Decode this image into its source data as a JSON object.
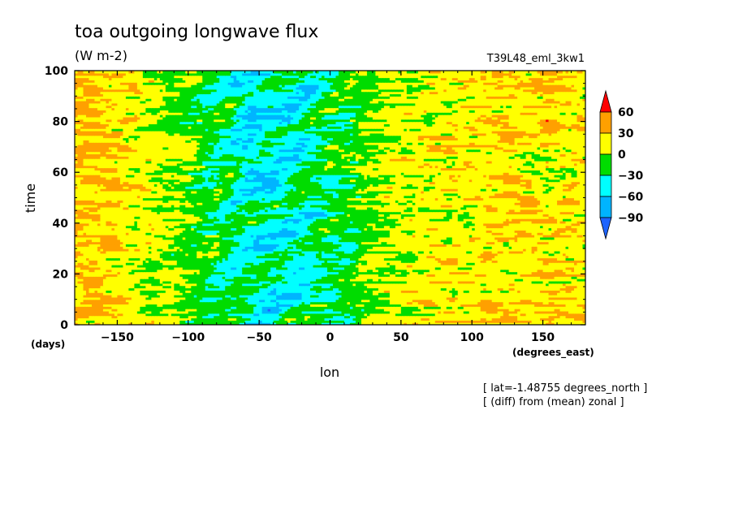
{
  "chart_data": {
    "type": "heatmap",
    "title": "toa outgoing longwave flux",
    "units": "(W m-2)",
    "run_label": "T39L48_eml_3kw1",
    "xlabel": "lon",
    "ylabel": "time",
    "x_unit_label": "(degrees_east)",
    "y_unit_label": "(days)",
    "xlim": [
      -180,
      180
    ],
    "ylim": [
      0,
      100
    ],
    "x_ticks": [
      -150,
      -100,
      -50,
      0,
      50,
      100,
      150
    ],
    "y_ticks": [
      0,
      20,
      40,
      60,
      80,
      100
    ],
    "colorbar": {
      "levels": [
        -90,
        -60,
        -30,
        0,
        30,
        60
      ],
      "labels": [
        "60",
        "30",
        "0",
        "-30",
        "-60",
        "-90"
      ],
      "colors": [
        "#1e64ff",
        "#00b4ff",
        "#00ffff",
        "#00dc00",
        "#ffff00",
        "#ffa000",
        "#ff0000"
      ]
    },
    "annotations": [
      "[ lat=-1.48755 degrees_north ]",
      "[ (diff) from (mean) zonal ]"
    ]
  }
}
